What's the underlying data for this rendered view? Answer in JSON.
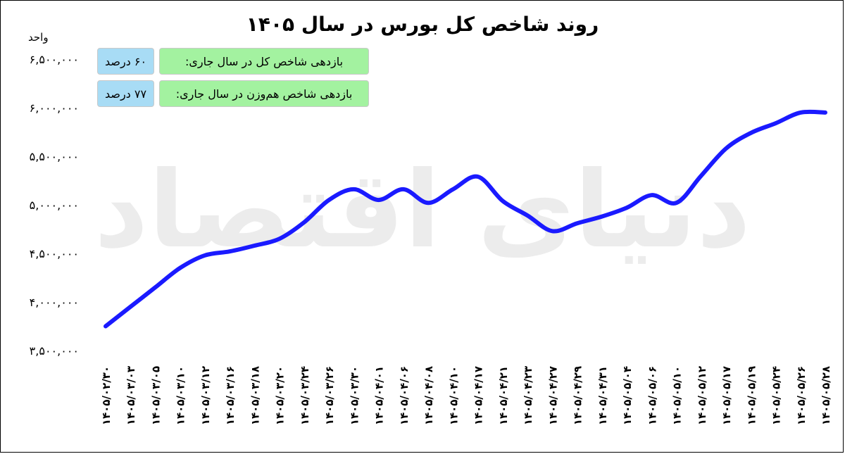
{
  "title": "روند شاخص کل بورس در سال ۱۴۰۵",
  "unit_label": "واحد",
  "info": {
    "row1": {
      "label": "بازدهی شاخص کل در سال جاری:",
      "value": "۶۰ درصد"
    },
    "row2": {
      "label": "بازدهی شاخص هم‌وزن در سال جاری:",
      "value": "۷۷ درصد"
    }
  },
  "watermark": "دنیای اقتصاد",
  "colors": {
    "line": "#1a1aff",
    "label_box": "#a3f2a0",
    "value_box": "#a8dcf5"
  },
  "chart_data": {
    "type": "line",
    "title": "روند شاخص کل بورس در سال ۱۴۰۵",
    "ylabel": "واحد",
    "xlabel": "",
    "ylim": [
      3500000,
      6500000
    ],
    "yticks": [
      3500000,
      4000000,
      4500000,
      5000000,
      5500000,
      6000000,
      6500000
    ],
    "ytick_labels": [
      "۳,۵۰۰,۰۰۰",
      "۴,۰۰۰,۰۰۰",
      "۴,۵۰۰,۰۰۰",
      "۵,۰۰۰,۰۰۰",
      "۵,۵۰۰,۰۰۰",
      "۶,۰۰۰,۰۰۰",
      "۶,۵۰۰,۰۰۰"
    ],
    "categories": [
      "۱۴۰۵/۰۲/۳۰",
      "۱۴۰۵/۰۳/۰۳",
      "۱۴۰۵/۰۳/۰۵",
      "۱۴۰۵/۰۳/۱۰",
      "۱۴۰۵/۰۳/۱۲",
      "۱۴۰۵/۰۳/۱۶",
      "۱۴۰۵/۰۳/۱۸",
      "۱۴۰۵/۰۳/۲۰",
      "۱۴۰۵/۰۳/۲۴",
      "۱۴۰۵/۰۳/۲۶",
      "۱۴۰۵/۰۳/۳۰",
      "۱۴۰۵/۰۴/۰۱",
      "۱۴۰۵/۰۴/۰۶",
      "۱۴۰۵/۰۴/۰۸",
      "۱۴۰۵/۰۴/۱۰",
      "۱۴۰۵/۰۴/۱۷",
      "۱۴۰۵/۰۴/۲۱",
      "۱۴۰۵/۰۴/۲۳",
      "۱۴۰۵/۰۴/۲۷",
      "۱۴۰۵/۰۴/۲۹",
      "۱۴۰۵/۰۴/۳۱",
      "۱۴۰۵/۰۵/۰۴",
      "۱۴۰۵/۰۵/۰۶",
      "۱۴۰۵/۰۵/۱۰",
      "۱۴۰۵/۰۵/۱۲",
      "۱۴۰۵/۰۵/۱۷",
      "۱۴۰۵/۰۵/۱۹",
      "۱۴۰۵/۰۵/۲۴",
      "۱۴۰۵/۰۵/۲۶",
      "۱۴۰۵/۰۵/۲۸"
    ],
    "series": [
      {
        "values": [
          3750000,
          3950000,
          4150000,
          4350000,
          4480000,
          4520000,
          4580000,
          4650000,
          4820000,
          5050000,
          5160000,
          5050000,
          5160000,
          5020000,
          5160000,
          5290000,
          5040000,
          4890000,
          4730000,
          4810000,
          4880000,
          4970000,
          5100000,
          5020000,
          5300000,
          5580000,
          5740000,
          5840000,
          5950000,
          5950000
        ]
      }
    ],
    "grid": false,
    "legend": "none"
  }
}
